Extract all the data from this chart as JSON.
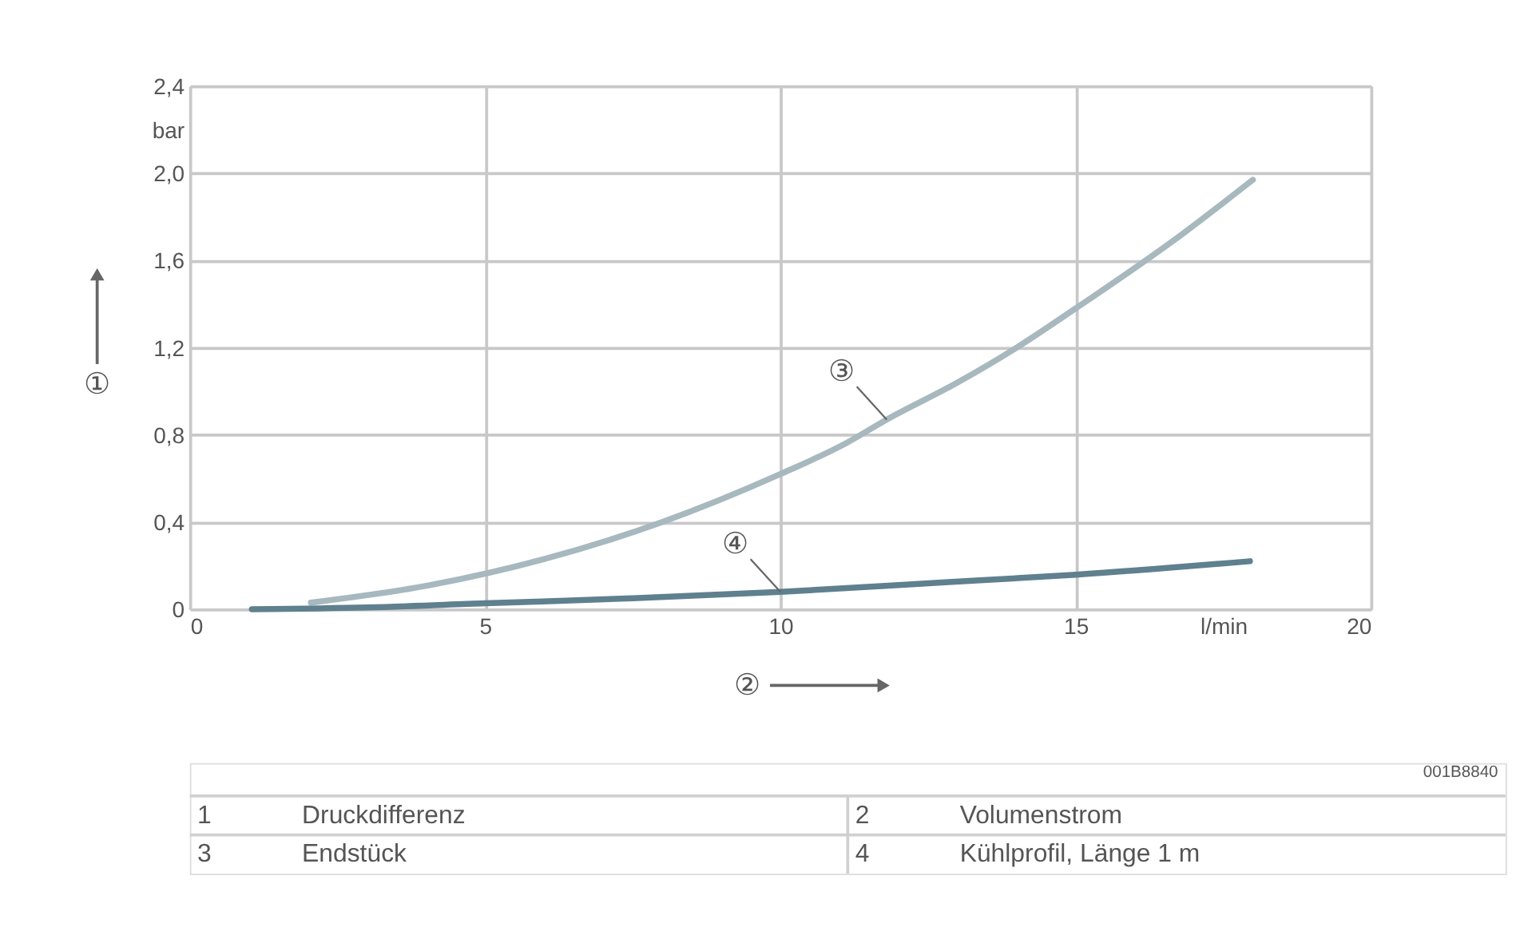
{
  "chart_data": {
    "type": "line",
    "xlabel": "②",
    "ylabel": "①",
    "x": [
      2.05,
      4.06,
      6.0,
      8.0,
      10.0,
      11.1,
      11.8,
      13.0,
      14.0,
      15.0,
      16.8,
      18.0
    ],
    "series": [
      {
        "name": "③",
        "color": "#a7b8bf",
        "values": [
          0.03,
          0.11,
          0.23,
          0.4,
          0.62,
          0.76,
          0.87,
          1.04,
          1.2,
          1.38,
          1.72,
          1.97
        ]
      },
      {
        "name": "④",
        "color": "#5f808e",
        "x": [
          1.05,
          3.0,
          5.0,
          7.5,
          10.0,
          12.9,
          15.0,
          17.95
        ],
        "values": [
          0.0,
          0.008,
          0.027,
          0.05,
          0.079,
          0.125,
          0.158,
          0.22
        ]
      }
    ],
    "xlim": [
      0,
      20
    ],
    "ylim": [
      0,
      2.4
    ],
    "xticks": [
      0,
      5,
      10,
      15,
      {
        "value": 17.5,
        "label": "l/min"
      },
      20
    ],
    "yticks": [
      0,
      {
        "value": 0.4,
        "label": "0,4"
      },
      {
        "value": 0.8,
        "label": "0,8"
      },
      {
        "value": 1.2,
        "label": "1,2"
      },
      {
        "value": 1.6,
        "label": "1,6"
      },
      {
        "value": 2.0,
        "label": "2,0"
      },
      {
        "value": 2.2,
        "label": "bar"
      },
      {
        "value": 2.4,
        "label": "2,4"
      }
    ],
    "grid": true,
    "legend": false,
    "marker": "none",
    "line_style": "solid",
    "annotations": [
      "001B8840",
      "1",
      "Druckdifferenz",
      "2",
      "Volumenstrom",
      "3",
      "Endstück",
      "4",
      "Kühlprofil, Länge 1 m"
    ]
  }
}
